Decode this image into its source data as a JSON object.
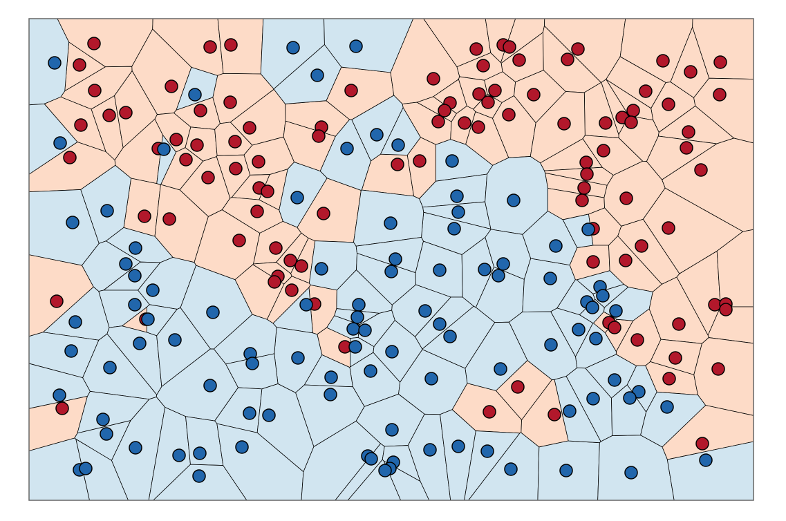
{
  "chart_data": {
    "type": "scatter",
    "voronoi": true,
    "xlim": [
      42,
      1090
    ],
    "ylim": [
      724,
      27
    ],
    "series": [
      {
        "color": "#b2182b",
        "region_color": "#fddbc7",
        "x": [
          136,
          115,
          304,
          334,
          137,
          248,
          290,
          333,
          158,
          182,
          117,
          361,
          255,
          285,
          340,
          229,
          101,
          269,
          341,
          374,
          301,
          375,
          387,
          372,
          209,
          245,
          346,
          399,
          420,
          436,
          402,
          397,
          422,
          455,
          468,
          465,
          461,
          508,
          499,
          211,
          82,
          90,
          689,
          728,
          737,
          751,
          699,
          836,
          821,
          627,
          651,
          643,
          634,
          693,
          706,
          716,
          672,
          692,
          736,
          772,
          959,
          999,
          1042,
          1041,
          934,
          967,
          916,
          900,
          913,
          876,
          816,
          996,
          993,
          873,
          848,
          849,
          845,
          842,
          1014,
          906,
          575,
          607,
          858,
          967,
          928,
          858,
          905,
          881,
          889,
          922,
          982,
          1034,
          1050,
          1050,
          977,
          968,
          1039,
          749,
          708,
          802,
          1016
        ],
        "y": [
          63,
          94,
          68,
          65,
          131,
          125,
          160,
          148,
          167,
          163,
          181,
          185,
          202,
          210,
          205,
          215,
          228,
          231,
          244,
          234,
          257,
          272,
          277,
          306,
          313,
          317,
          348,
          359,
          377,
          385,
          400,
          408,
          420,
          440,
          309,
          184,
          197,
          131,
          502,
          462,
          436,
          591,
          71,
          65,
          68,
          87,
          95,
          71,
          86,
          114,
          149,
          160,
          176,
          136,
          148,
          131,
          178,
          184,
          166,
          137,
          88,
          104,
          90,
          137,
          132,
          151,
          160,
          170,
          177,
          178,
          179,
          191,
          214,
          218,
          235,
          252,
          272,
          290,
          246,
          287,
          238,
          233,
          331,
          330,
          356,
          379,
          377,
          467,
          474,
          492,
          469,
          441,
          440,
          448,
          518,
          548,
          534,
          560,
          596,
          600,
          642
        ]
      },
      {
        "color": "#2166ac",
        "region_color": "#d1e5f0",
        "x": [
          79,
          282,
          424,
          515,
          459,
          87,
          237,
          545,
          502,
          576,
          654,
          430,
          661,
          663,
          657,
          743,
          565,
          155,
          105,
          196,
          182,
          195,
          221,
          195,
          214,
          109,
          202,
          103,
          159,
          253,
          308,
          465,
          443,
          519,
          517,
          511,
          528,
          514,
          567,
          536,
          572,
          566,
          636,
          701,
          728,
          721,
          796,
          804,
          851,
          868,
          872,
          849,
          857,
          891,
          615,
          636,
          651,
          837,
          862,
          797,
          724,
          624,
          431,
          362,
          365,
          304,
          479,
          478,
          361,
          389,
          149,
          154,
          86,
          196,
          259,
          289,
          288,
          350,
          115,
          124,
          567,
          622,
          663,
          705,
          532,
          537,
          569,
          564,
          557,
          739,
          819,
          913,
          1021,
          858,
          889,
          924,
          911,
          965,
          824
        ],
        "y": [
          91,
          137,
          69,
          67,
          109,
          207,
          216,
          195,
          215,
          210,
          233,
          286,
          284,
          307,
          331,
          290,
          323,
          305,
          322,
          359,
          382,
          399,
          420,
          441,
          462,
          466,
          497,
          508,
          532,
          492,
          452,
          389,
          441,
          441,
          459,
          476,
          478,
          502,
          509,
          537,
          375,
          393,
          391,
          390,
          382,
          399,
          403,
          356,
          332,
          415,
          428,
          437,
          445,
          450,
          450,
          469,
          487,
          477,
          490,
          499,
          534,
          548,
          518,
          512,
          526,
          558,
          546,
          571,
          598,
          601,
          607,
          628,
          572,
          648,
          659,
          656,
          689,
          647,
          680,
          678,
          622,
          651,
          646,
          653,
          660,
          664,
          669,
          678,
          681,
          679,
          681,
          684,
          666,
          577,
          550,
          567,
          576,
          589,
          595
        ]
      }
    ]
  }
}
